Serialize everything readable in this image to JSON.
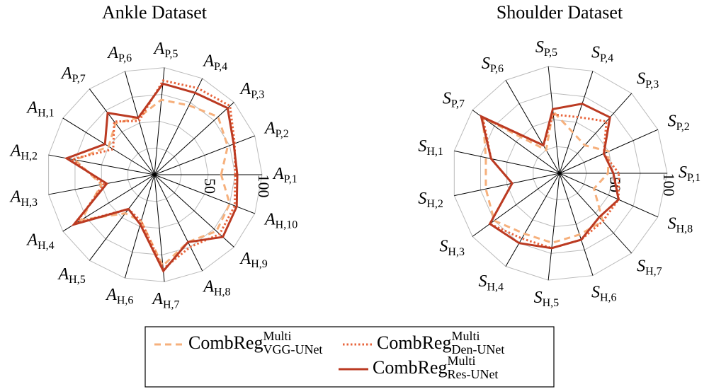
{
  "chart_data": [
    {
      "type": "radar",
      "title": "Ankle Dataset",
      "axes": [
        {
          "base": "A",
          "sub": "P,1"
        },
        {
          "base": "A",
          "sub": "P,2"
        },
        {
          "base": "A",
          "sub": "P,3"
        },
        {
          "base": "A",
          "sub": "P,4"
        },
        {
          "base": "A",
          "sub": "P,5"
        },
        {
          "base": "A",
          "sub": "P,6"
        },
        {
          "base": "A",
          "sub": "P,7"
        },
        {
          "base": "A",
          "sub": "H,1"
        },
        {
          "base": "A",
          "sub": "H,2"
        },
        {
          "base": "A",
          "sub": "H,3"
        },
        {
          "base": "A",
          "sub": "H,4"
        },
        {
          "base": "A",
          "sub": "H,5"
        },
        {
          "base": "A",
          "sub": "H,6"
        },
        {
          "base": "A",
          "sub": "H,7"
        },
        {
          "base": "A",
          "sub": "H,8"
        },
        {
          "base": "A",
          "sub": "H,9"
        },
        {
          "base": "A",
          "sub": "H,10"
        }
      ],
      "rlim": [
        0,
        100
      ],
      "rticks": [
        50,
        100
      ],
      "minor_rticks": [
        25,
        75
      ],
      "series": [
        {
          "values": [
            62,
            73,
            80,
            72,
            70,
            55,
            60,
            50,
            75,
            50,
            80,
            45,
            45,
            85,
            70,
            78,
            75
          ]
        },
        {
          "values": [
            75,
            80,
            95,
            90,
            88,
            52,
            62,
            45,
            78,
            48,
            85,
            40,
            45,
            88,
            75,
            82,
            80
          ]
        },
        {
          "values": [
            77,
            79,
            92,
            85,
            85,
            55,
            72,
            54,
            83,
            45,
            88,
            40,
            48,
            90,
            70,
            86,
            82
          ]
        }
      ]
    },
    {
      "type": "radar",
      "title": "Shoulder Dataset",
      "axes": [
        {
          "base": "S",
          "sub": "P,1"
        },
        {
          "base": "S",
          "sub": "P,2"
        },
        {
          "base": "S",
          "sub": "P,3"
        },
        {
          "base": "S",
          "sub": "P,4"
        },
        {
          "base": "S",
          "sub": "P,5"
        },
        {
          "base": "S",
          "sub": "P,6"
        },
        {
          "base": "S",
          "sub": "P,7"
        },
        {
          "base": "S",
          "sub": "H,1"
        },
        {
          "base": "S",
          "sub": "H,2"
        },
        {
          "base": "S",
          "sub": "H,3"
        },
        {
          "base": "S",
          "sub": "H,4"
        },
        {
          "base": "S",
          "sub": "H,5"
        },
        {
          "base": "S",
          "sub": "H,6"
        },
        {
          "base": "S",
          "sub": "H,7"
        },
        {
          "base": "S",
          "sub": "H,8"
        }
      ],
      "rlim": [
        0,
        100
      ],
      "rticks": [
        50,
        100
      ],
      "minor_rticks": [
        25,
        75
      ],
      "series": [
        {
          "values": [
            45,
            50,
            35,
            40,
            58,
            25,
            88,
            70,
            70,
            75,
            65,
            65,
            60,
            60,
            35
          ]
        },
        {
          "values": [
            55,
            45,
            65,
            55,
            55,
            30,
            88,
            65,
            45,
            80,
            70,
            70,
            65,
            60,
            60
          ]
        },
        {
          "values": [
            50,
            45,
            70,
            68,
            60,
            30,
            90,
            65,
            45,
            80,
            75,
            70,
            65,
            55,
            60
          ]
        }
      ]
    }
  ],
  "legend": [
    {
      "base": "CombReg",
      "sup": "Multi",
      "sub": "VGG-UNet",
      "color": "#f6b07c",
      "dash": "dashed"
    },
    {
      "base": "CombReg",
      "sup": "Multi",
      "sub": "Den-UNet",
      "color": "#e8653c",
      "dash": "dotted"
    },
    {
      "base": "CombReg",
      "sup": "Multi",
      "sub": "Res-UNet",
      "color": "#bb3a22",
      "dash": "solid"
    }
  ]
}
